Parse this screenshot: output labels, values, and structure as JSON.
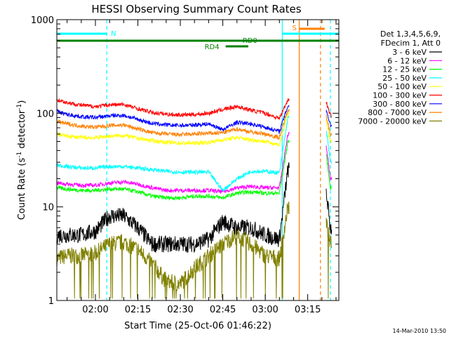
{
  "chart_data": {
    "type": "line",
    "title": "HESSI Observing Summary Count Rates",
    "xlabel": "Start Time (25-Oct-06 01:46:22)",
    "ylabel_parts": [
      "Count Rate (s",
      "-1",
      " detector",
      "-1",
      ")"
    ],
    "y_scale": "log",
    "ylim": [
      1,
      1000
    ],
    "x_unit": "UT time",
    "xlim": [
      "01:46:22",
      "03:26:00"
    ],
    "x_ticks": [
      "02:00",
      "02:15",
      "02:30",
      "02:45",
      "03:00",
      "03:15"
    ],
    "y_ticks": [
      "1",
      "10",
      "100",
      "1000"
    ],
    "grid": false,
    "legend": {
      "placement": "right",
      "header": [
        "Det 1,3,4,5,6,9,",
        "FDecim 1, Att 0"
      ]
    },
    "annotations": {
      "night": "N",
      "saa": "S",
      "rd0": "RD0",
      "rd4": "RD4"
    },
    "annotation_times": {
      "night_start": "01:46:22",
      "night_end": "02:04:00",
      "day_start": "03:06:00",
      "saa_start": "03:12:00",
      "saa_end": "03:21:00",
      "rd4_start": "02:46:00",
      "rd4_end": "02:54:00",
      "gap_start": "03:19:30",
      "gap_end": "03:23:00"
    },
    "series": [
      {
        "name": "3 - 6 keV",
        "color": "#000000",
        "x": [
          "01:46:22",
          "01:50",
          "01:55",
          "02:00",
          "02:05",
          "02:10",
          "02:15",
          "02:20",
          "02:25",
          "02:30",
          "02:35",
          "02:40",
          "02:45",
          "02:50",
          "02:55",
          "03:00",
          "03:05",
          "03:08",
          "03:21",
          "03:23"
        ],
        "y": [
          5,
          5,
          5,
          5.5,
          8,
          8,
          6,
          4,
          4,
          4,
          4,
          4.5,
          7,
          6,
          6,
          5,
          4.5,
          25,
          20,
          6
        ]
      },
      {
        "name": "6 - 12 keV",
        "color": "#ff00ff",
        "x": [
          "01:46:22",
          "01:50",
          "01:55",
          "02:00",
          "02:05",
          "02:10",
          "02:15",
          "02:20",
          "02:25",
          "02:30",
          "02:35",
          "02:40",
          "02:45",
          "02:50",
          "02:55",
          "03:00",
          "03:05",
          "03:08",
          "03:21",
          "03:23"
        ],
        "y": [
          18,
          17.5,
          17,
          17,
          18,
          18.5,
          17.5,
          16,
          15,
          15,
          15,
          15,
          14.5,
          16,
          16.5,
          16,
          16,
          60,
          60,
          20
        ]
      },
      {
        "name": "12 - 25 keV",
        "color": "#00ff00",
        "x": [
          "01:46:22",
          "01:50",
          "01:55",
          "02:00",
          "02:05",
          "02:10",
          "02:15",
          "02:20",
          "02:25",
          "02:30",
          "02:35",
          "02:40",
          "02:45",
          "02:50",
          "02:55",
          "03:00",
          "03:05",
          "03:08",
          "03:21",
          "03:23"
        ],
        "y": [
          16,
          15.5,
          15,
          15,
          15.5,
          15.5,
          14.5,
          13,
          12.5,
          12.5,
          13,
          13,
          12.5,
          14,
          14.5,
          14,
          14,
          50,
          50,
          16
        ]
      },
      {
        "name": "25 - 50 keV",
        "color": "#00ffff",
        "x": [
          "01:46:22",
          "01:50",
          "01:55",
          "02:00",
          "02:05",
          "02:10",
          "02:15",
          "02:20",
          "02:25",
          "02:30",
          "02:35",
          "02:40",
          "02:45",
          "02:50",
          "02:55",
          "03:00",
          "03:05",
          "03:08",
          "03:21",
          "03:23"
        ],
        "y": [
          28,
          27,
          26,
          26,
          27,
          27,
          26,
          25,
          24,
          23.5,
          23.5,
          23.5,
          15,
          20,
          24,
          24,
          23,
          90,
          90,
          30
        ]
      },
      {
        "name": "50 - 100 keV",
        "color": "#ffff00",
        "x": [
          "01:46:22",
          "01:50",
          "01:55",
          "02:00",
          "02:05",
          "02:10",
          "02:15",
          "02:20",
          "02:25",
          "02:30",
          "02:35",
          "02:40",
          "02:45",
          "02:50",
          "02:55",
          "03:00",
          "03:05",
          "03:08",
          "03:21",
          "03:23"
        ],
        "y": [
          60,
          57,
          55,
          55,
          57,
          58,
          54,
          51,
          49,
          48,
          48,
          49,
          52,
          55,
          52,
          50,
          46,
          100,
          100,
          50
        ]
      },
      {
        "name": "100 - 300 keV",
        "color": "#ff0000",
        "x": [
          "01:46:22",
          "01:50",
          "01:55",
          "02:00",
          "02:05",
          "02:10",
          "02:15",
          "02:20",
          "02:25",
          "02:30",
          "02:35",
          "02:40",
          "02:45",
          "02:50",
          "02:55",
          "03:00",
          "03:05",
          "03:08",
          "03:21",
          "03:23"
        ],
        "y": [
          140,
          130,
          122,
          118,
          123,
          124,
          112,
          102,
          98,
          96,
          97,
          100,
          110,
          118,
          108,
          100,
          88,
          140,
          150,
          95
        ]
      },
      {
        "name": "300 - 800 keV",
        "color": "#0000ff",
        "x": [
          "01:46:22",
          "01:50",
          "01:55",
          "02:00",
          "02:05",
          "02:10",
          "02:15",
          "02:20",
          "02:25",
          "02:30",
          "02:35",
          "02:40",
          "02:45",
          "02:50",
          "02:55",
          "03:00",
          "03:05",
          "03:08",
          "03:21",
          "03:23"
        ],
        "y": [
          105,
          97,
          92,
          90,
          94,
          95,
          86,
          78,
          75,
          74,
          75,
          77,
          67,
          80,
          77,
          71,
          64,
          120,
          125,
          75
        ]
      },
      {
        "name": "800 - 7000 keV",
        "color": "#ff8000",
        "x": [
          "01:46:22",
          "01:50",
          "01:55",
          "02:00",
          "02:05",
          "02:10",
          "02:15",
          "02:20",
          "02:25",
          "02:30",
          "02:35",
          "02:40",
          "02:45",
          "02:50",
          "02:55",
          "03:00",
          "03:05",
          "03:08",
          "03:21",
          "03:23"
        ],
        "y": [
          82,
          77,
          73,
          71,
          74,
          75,
          68,
          62,
          60,
          59,
          60,
          61,
          62,
          68,
          63,
          60,
          55,
          110,
          110,
          60
        ]
      },
      {
        "name": "7000 - 20000 keV",
        "color": "#808000",
        "x": [
          "01:46:22",
          "01:50",
          "01:55",
          "02:00",
          "02:05",
          "02:10",
          "02:15",
          "02:20",
          "02:25",
          "02:30",
          "02:35",
          "02:40",
          "02:45",
          "02:50",
          "02:55",
          "03:00",
          "03:05",
          "03:08",
          "03:21",
          "03:23"
        ],
        "y": [
          2.8,
          3,
          3,
          3.2,
          4,
          4.2,
          3.5,
          2.5,
          1.6,
          1.5,
          2.2,
          3,
          4,
          5,
          4,
          3,
          2.8,
          10,
          8,
          4
        ]
      }
    ]
  },
  "footer": {
    "timestamp": "14-Mar-2010 13:50"
  }
}
